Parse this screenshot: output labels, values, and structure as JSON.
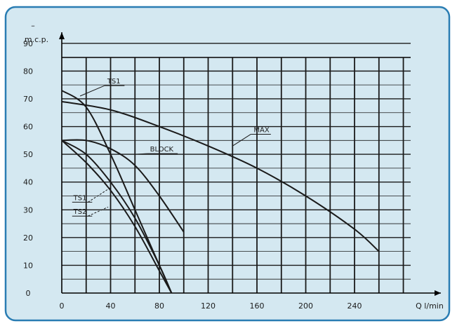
{
  "chart_data": {
    "type": "line",
    "title": "",
    "xlabel": "Q l/min",
    "ylabel": "m.c.p.",
    "ylabel_top": "–",
    "xlim": [
      0,
      305
    ],
    "ylim": [
      0,
      95
    ],
    "x_ticks": [
      0,
      40,
      80,
      120,
      160,
      200,
      240
    ],
    "x_tick_labels": [
      "0",
      "40",
      "80",
      "120",
      "160",
      "200",
      "240"
    ],
    "y_ticks": [
      0,
      10,
      20,
      30,
      40,
      50,
      60,
      70,
      80,
      90
    ],
    "y_tick_labels": [
      "0",
      "10",
      "20",
      "30",
      "40",
      "50",
      "60",
      "70",
      "80",
      "90"
    ],
    "grid": true,
    "grid_vertical_x": [
      20,
      40,
      60,
      80,
      100,
      120,
      140,
      160,
      180,
      200,
      220,
      240,
      260,
      280
    ],
    "grid_horizontal_y": [
      5,
      10,
      15,
      20,
      25,
      30,
      35,
      40,
      45,
      50,
      55,
      60,
      65,
      70,
      75,
      80,
      85,
      90
    ],
    "colors": {
      "panel_bg": "#d4e8f1",
      "frame": "#2a7db3",
      "grid": "#1a1a1a",
      "curve": "#1a1a1a"
    },
    "series": [
      {
        "name": "MAX",
        "x": [
          0,
          40,
          80,
          120,
          160,
          200,
          240,
          260
        ],
        "y": [
          69,
          66,
          60,
          53,
          45,
          35,
          23,
          15
        ]
      },
      {
        "name": "TS1",
        "x": [
          0,
          20,
          40,
          60,
          80,
          90
        ],
        "y": [
          73,
          67,
          50,
          30,
          10,
          0
        ]
      },
      {
        "name": "BLOCK",
        "x": [
          0,
          20,
          40,
          60,
          80,
          100
        ],
        "y": [
          55,
          55,
          52,
          46,
          35,
          22
        ]
      },
      {
        "name": "TS1",
        "x": [
          0,
          20,
          40,
          60,
          80,
          90
        ],
        "y": [
          55,
          50,
          40,
          27,
          10,
          0
        ]
      },
      {
        "name": "TS2",
        "x": [
          0,
          20,
          40,
          60,
          80,
          90
        ],
        "y": [
          55,
          47,
          37,
          24,
          8,
          0
        ]
      }
    ],
    "annotations": [
      {
        "text": "TS1",
        "x": 35,
        "y": 75.5
      },
      {
        "text": "BLOCK",
        "x": 70,
        "y": 51
      },
      {
        "text": "MAX",
        "x": 155,
        "y": 58
      },
      {
        "text": "TS1",
        "x": 15,
        "y": 33.5
      },
      {
        "text": "TS2",
        "x": 15,
        "y": 28.5
      }
    ]
  }
}
